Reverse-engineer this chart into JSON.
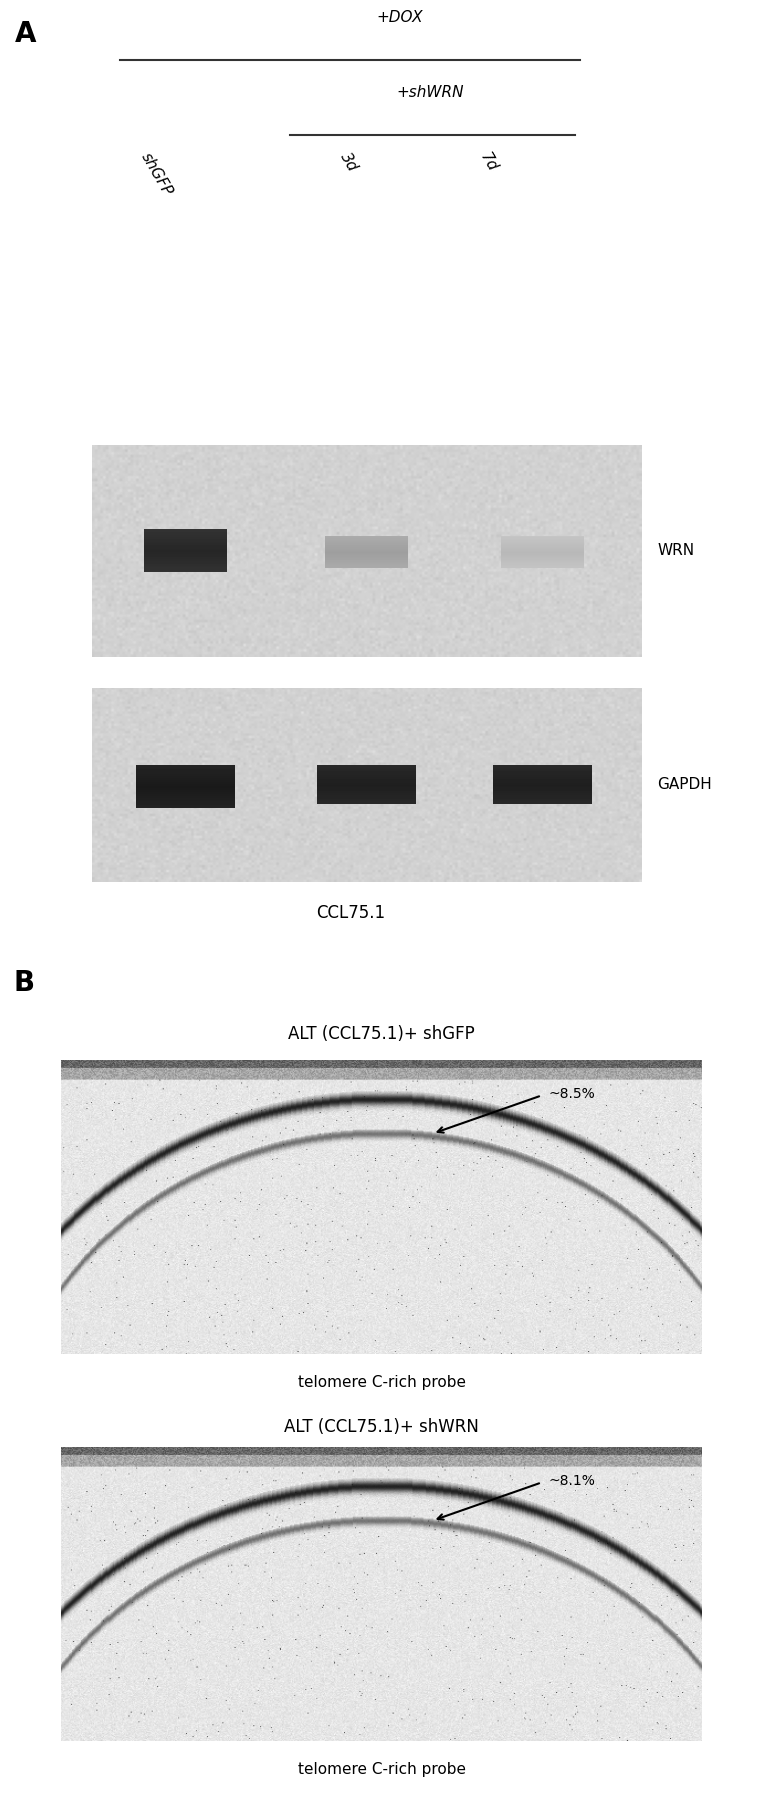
{
  "panel_A_label": "A",
  "panel_B_label": "B",
  "dox_label": "+DOX",
  "shwrn_label": "+shWRN",
  "shgfp_label": "shGFP",
  "lane_3d_label": "3d",
  "lane_7d_label": "7d",
  "wrn_label": "WRN",
  "gapdh_label": "GAPDH",
  "ccl75_label": "CCL75.1",
  "panel_b1_title": "ALT (CCL75.1)+ shGFP",
  "panel_b2_title": "ALT (CCL75.1)+ shWRN",
  "probe_label": "telomere C-rich probe",
  "arrow1_label": "~8.5%",
  "arrow2_label": "~8.1%",
  "bg_color": "#ffffff",
  "fig_width": 7.63,
  "fig_height": 18.0,
  "label_fontsize": 20,
  "text_fontsize": 11,
  "annot_fontsize": 10
}
